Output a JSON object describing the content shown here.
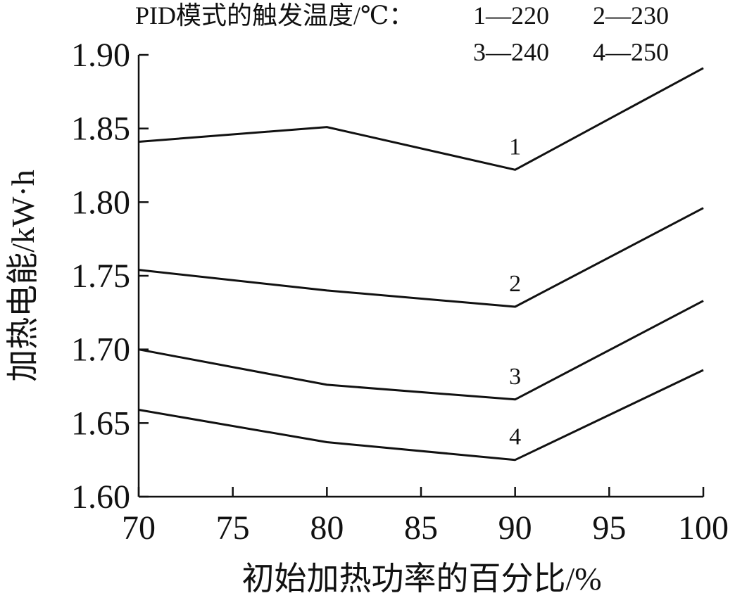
{
  "chart_data": {
    "type": "line",
    "title": "",
    "legend": {
      "title": "PID模式的触发温度/℃：",
      "entries": [
        "1—220",
        "2—230",
        "3—240",
        "4—250"
      ]
    },
    "xlabel": "初始加热功率的百分比/%",
    "ylabel": "加热电能/kW·h",
    "xlim": [
      70,
      100
    ],
    "ylim": [
      1.6,
      1.9
    ],
    "x_ticks": [
      "70",
      "75",
      "80",
      "85",
      "90",
      "95",
      "100"
    ],
    "y_ticks": [
      "1.60",
      "1.65",
      "1.70",
      "1.75",
      "1.80",
      "1.85",
      "1.90"
    ],
    "x": [
      70,
      80,
      90,
      100
    ],
    "series": [
      {
        "name": "1",
        "values": [
          1.841,
          1.851,
          1.822,
          1.891
        ]
      },
      {
        "name": "2",
        "values": [
          1.754,
          1.74,
          1.729,
          1.796
        ]
      },
      {
        "name": "3",
        "values": [
          1.7,
          1.676,
          1.666,
          1.733
        ]
      },
      {
        "name": "4",
        "values": [
          1.659,
          1.637,
          1.625,
          1.686
        ]
      }
    ],
    "grid": false,
    "line_color": "#111111"
  }
}
